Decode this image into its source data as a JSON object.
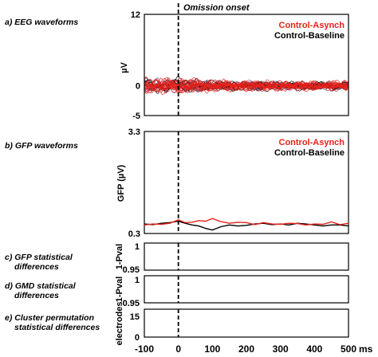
{
  "panels": {
    "a": "a) EEG waveforms",
    "b": "b) GFP waveforms",
    "c_line1": "c) GFP statistical",
    "c_line2": "differences",
    "d_line1": "d) GMD statistical",
    "d_line2": "differences",
    "e_line1": "e) Cluster permutation",
    "e_line2": "statistical differences"
  },
  "annotation": "Omission onset",
  "x_unit": "ms",
  "colors": {
    "asynch": "#e8221c",
    "baseline": "#000000",
    "eeg_blue": "#3a4fa0"
  },
  "chart_data": [
    {
      "type": "line",
      "panel": "a",
      "ylabel": "µV",
      "ylim": [
        -5,
        12
      ],
      "yticks": [
        "12",
        "0",
        "-5"
      ],
      "ytick_values": [
        12,
        0,
        -5
      ],
      "xlim": [
        -100,
        500
      ],
      "vline_x": 0,
      "series": [
        {
          "name": "Control-Asynch",
          "note": "many electrode traces overlaid around 0"
        },
        {
          "name": "Control-Baseline",
          "note": "many electrode traces overlaid around 0"
        }
      ],
      "x": [
        -100,
        -75,
        -50,
        -25,
        0,
        25,
        50,
        75,
        100,
        150,
        200,
        250,
        300,
        350,
        400,
        450,
        500
      ],
      "envelope": [
        1.2,
        1.4,
        1.3,
        1.2,
        1.4,
        1.3,
        1.2,
        1.1,
        1.0,
        0.9,
        0.9,
        0.9,
        0.8,
        0.8,
        0.8,
        0.8,
        0.8
      ]
    },
    {
      "type": "line",
      "panel": "b",
      "ylabel": "GFP (µV)",
      "ylim": [
        0.3,
        3.3
      ],
      "yticks": [
        "3.3",
        "0.3"
      ],
      "ytick_values": [
        3.3,
        0.3
      ],
      "xlim": [
        -100,
        500
      ],
      "vline_x": 0,
      "series": [
        {
          "name": "Control-Asynch",
          "x": [
            -100,
            -75,
            -50,
            -25,
            0,
            20,
            40,
            60,
            80,
            100,
            125,
            150,
            175,
            200,
            225,
            250,
            275,
            300,
            325,
            350,
            375,
            400,
            425,
            450,
            475,
            500
          ],
          "values": [
            0.55,
            0.58,
            0.57,
            0.6,
            0.7,
            0.62,
            0.63,
            0.68,
            0.66,
            0.74,
            0.65,
            0.6,
            0.63,
            0.62,
            0.56,
            0.62,
            0.58,
            0.57,
            0.6,
            0.59,
            0.55,
            0.58,
            0.57,
            0.64,
            0.56,
            0.6
          ]
        },
        {
          "name": "Control-Baseline",
          "x": [
            -100,
            -75,
            -50,
            -25,
            0,
            20,
            40,
            60,
            80,
            100,
            125,
            150,
            175,
            200,
            225,
            250,
            275,
            300,
            325,
            350,
            375,
            400,
            425,
            450,
            475,
            500
          ],
          "values": [
            0.58,
            0.56,
            0.6,
            0.62,
            0.66,
            0.6,
            0.55,
            0.52,
            0.45,
            0.4,
            0.5,
            0.55,
            0.52,
            0.54,
            0.58,
            0.6,
            0.56,
            0.58,
            0.55,
            0.6,
            0.58,
            0.55,
            0.52,
            0.55,
            0.55,
            0.52
          ]
        }
      ]
    },
    {
      "type": "line",
      "panel": "c",
      "ylabel": "1-Pval",
      "yticks": [
        "1",
        "0.95"
      ],
      "ylim": [
        0.95,
        1
      ],
      "xlim": [
        -100,
        500
      ],
      "series": []
    },
    {
      "type": "line",
      "panel": "d",
      "ylabel": "1-Pval",
      "yticks": [
        "1",
        "0.95"
      ],
      "ylim": [
        0.95,
        1
      ],
      "xlim": [
        -100,
        500
      ],
      "series": []
    },
    {
      "type": "line",
      "panel": "e",
      "ylabel": "electrodes",
      "yticks": [
        "15",
        "0"
      ],
      "ylim": [
        0,
        15
      ],
      "xlim": [
        -100,
        500
      ],
      "xticks": [
        "-100",
        "0",
        "100",
        "200",
        "300",
        "400",
        "500"
      ],
      "xtick_values": [
        -100,
        0,
        100,
        200,
        300,
        400,
        500
      ],
      "series": []
    }
  ]
}
